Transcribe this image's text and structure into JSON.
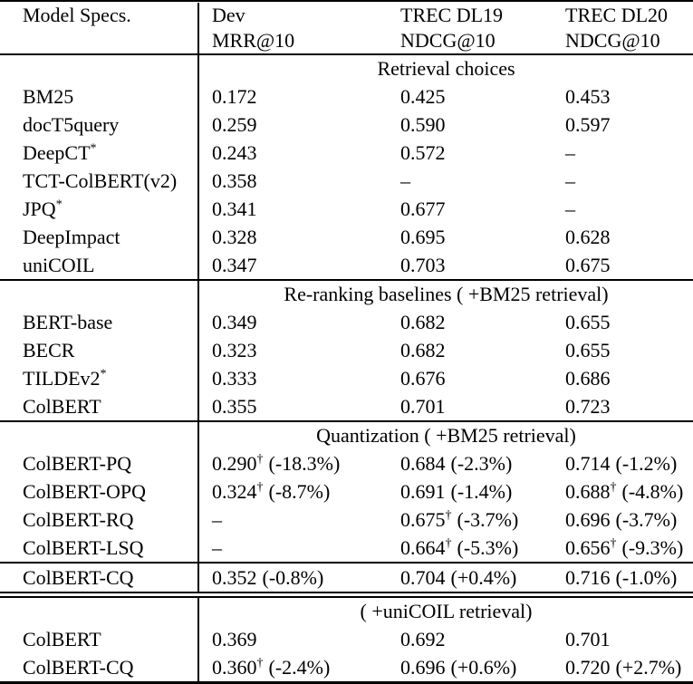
{
  "table": {
    "header": {
      "model_specs": "Model Specs.",
      "cols": [
        {
          "line1": "Dev",
          "line2": "MRR@10"
        },
        {
          "line1": "TREC DL19",
          "line2": "NDCG@10"
        },
        {
          "line1": "TREC DL20",
          "line2": "NDCG@10"
        }
      ]
    },
    "sections": [
      {
        "title": "Retrieval choices",
        "rows": [
          {
            "name": "BM25",
            "sup": "",
            "cells": [
              {
                "v": "0.172",
                "s": "",
                "p": ""
              },
              {
                "v": "0.425",
                "s": "",
                "p": ""
              },
              {
                "v": "0.453",
                "s": "",
                "p": ""
              }
            ]
          },
          {
            "name": "docT5query",
            "sup": "",
            "cells": [
              {
                "v": "0.259",
                "s": "",
                "p": ""
              },
              {
                "v": "0.590",
                "s": "",
                "p": ""
              },
              {
                "v": "0.597",
                "s": "",
                "p": ""
              }
            ]
          },
          {
            "name": "DeepCT",
            "sup": "*",
            "cells": [
              {
                "v": "0.243",
                "s": "",
                "p": ""
              },
              {
                "v": "0.572",
                "s": "",
                "p": ""
              },
              {
                "v": "–",
                "s": "",
                "p": ""
              }
            ]
          },
          {
            "name": "TCT-ColBERT(v2)",
            "sup": "",
            "cells": [
              {
                "v": "0.358",
                "s": "",
                "p": ""
              },
              {
                "v": "–",
                "s": "",
                "p": ""
              },
              {
                "v": "–",
                "s": "",
                "p": ""
              }
            ]
          },
          {
            "name": "JPQ",
            "sup": "*",
            "cells": [
              {
                "v": "0.341",
                "s": "",
                "p": ""
              },
              {
                "v": "0.677",
                "s": "",
                "p": ""
              },
              {
                "v": "–",
                "s": "",
                "p": ""
              }
            ]
          },
          {
            "name": "DeepImpact",
            "sup": "",
            "cells": [
              {
                "v": "0.328",
                "s": "",
                "p": ""
              },
              {
                "v": "0.695",
                "s": "",
                "p": ""
              },
              {
                "v": "0.628",
                "s": "",
                "p": ""
              }
            ]
          },
          {
            "name": "uniCOIL",
            "sup": "",
            "cells": [
              {
                "v": "0.347",
                "s": "",
                "p": ""
              },
              {
                "v": "0.703",
                "s": "",
                "p": ""
              },
              {
                "v": "0.675",
                "s": "",
                "p": ""
              }
            ]
          }
        ]
      },
      {
        "title": "Re-ranking baselines ( +BM25 retrieval)",
        "rows": [
          {
            "name": "BERT-base",
            "sup": "",
            "cells": [
              {
                "v": "0.349",
                "s": "",
                "p": ""
              },
              {
                "v": "0.682",
                "s": "",
                "p": ""
              },
              {
                "v": "0.655",
                "s": "",
                "p": ""
              }
            ]
          },
          {
            "name": "BECR",
            "sup": "",
            "cells": [
              {
                "v": "0.323",
                "s": "",
                "p": ""
              },
              {
                "v": "0.682",
                "s": "",
                "p": ""
              },
              {
                "v": "0.655",
                "s": "",
                "p": ""
              }
            ]
          },
          {
            "name": "TILDEv2",
            "sup": "*",
            "cells": [
              {
                "v": "0.333",
                "s": "",
                "p": ""
              },
              {
                "v": "0.676",
                "s": "",
                "p": ""
              },
              {
                "v": "0.686",
                "s": "",
                "p": ""
              }
            ]
          },
          {
            "name": "ColBERT",
            "sup": "",
            "cells": [
              {
                "v": "0.355",
                "s": "",
                "p": ""
              },
              {
                "v": "0.701",
                "s": "",
                "p": ""
              },
              {
                "v": "0.723",
                "s": "",
                "p": ""
              }
            ]
          }
        ]
      },
      {
        "title": "Quantization ( +BM25 retrieval)",
        "rows": [
          {
            "name": "ColBERT-PQ",
            "sup": "",
            "cells": [
              {
                "v": "0.290",
                "s": "†",
                "p": "(-18.3%)"
              },
              {
                "v": "0.684",
                "s": "",
                "p": "(-2.3%)"
              },
              {
                "v": "0.714",
                "s": "",
                "p": "(-1.2%)"
              }
            ]
          },
          {
            "name": "ColBERT-OPQ",
            "sup": "",
            "cells": [
              {
                "v": "0.324",
                "s": "†",
                "p": "(-8.7%)"
              },
              {
                "v": "0.691",
                "s": "",
                "p": "(-1.4%)"
              },
              {
                "v": "0.688",
                "s": "†",
                "p": "(-4.8%)"
              }
            ]
          },
          {
            "name": "ColBERT-RQ",
            "sup": "",
            "cells": [
              {
                "v": "–",
                "s": "",
                "p": ""
              },
              {
                "v": "0.675",
                "s": "†",
                "p": "(-3.7%)"
              },
              {
                "v": "0.696",
                "s": "",
                "p": "(-3.7%)"
              }
            ]
          },
          {
            "name": "ColBERT-LSQ",
            "sup": "",
            "cells": [
              {
                "v": "–",
                "s": "",
                "p": ""
              },
              {
                "v": "0.664",
                "s": "†",
                "p": "(-5.3%)"
              },
              {
                "v": "0.656",
                "s": "†",
                "p": "(-9.3%)"
              }
            ]
          }
        ],
        "highlight_row": {
          "name": "ColBERT-CQ",
          "sup": "",
          "cells": [
            {
              "v": "0.352",
              "s": "",
              "p": "(-0.8%)"
            },
            {
              "v": "0.704",
              "s": "",
              "p": "(+0.4%)"
            },
            {
              "v": "0.716",
              "s": "",
              "p": "(-1.0%)"
            }
          ]
        }
      },
      {
        "title": "( +uniCOIL retrieval)",
        "rows": [
          {
            "name": "ColBERT",
            "sup": "",
            "cells": [
              {
                "v": "0.369",
                "s": "",
                "p": ""
              },
              {
                "v": "0.692",
                "s": "",
                "p": ""
              },
              {
                "v": "0.701",
                "s": "",
                "p": ""
              }
            ]
          },
          {
            "name": "ColBERT-CQ",
            "sup": "",
            "cells": [
              {
                "v": "0.360",
                "s": "†",
                "p": "(-2.4%)"
              },
              {
                "v": "0.696",
                "s": "",
                "p": "(+0.6%)"
              },
              {
                "v": "0.720",
                "s": "",
                "p": "(+2.7%)"
              }
            ]
          }
        ]
      }
    ]
  }
}
